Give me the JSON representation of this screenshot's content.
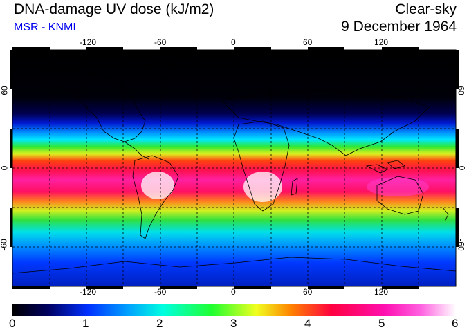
{
  "header": {
    "title": "DNA-damage UV dose (kJ/m2)",
    "subtitle": "MSR - KNMI",
    "condition": "Clear-sky",
    "date": "9 December 1964"
  },
  "map": {
    "lon_ticks": [
      "-120",
      "-60",
      "0",
      "60",
      "120"
    ],
    "lat_ticks_left": [
      "60",
      "0",
      "-60"
    ],
    "lat_ticks_right": [
      "60",
      "0",
      "-60"
    ],
    "colors": {
      "low": "#000010",
      "blue": "#0030ff",
      "cyan": "#00e8ff",
      "green": "#20e030",
      "yellow": "#f0ff20",
      "red": "#ff1030",
      "magenta": "#ff20c0",
      "white": "#ffffff"
    }
  },
  "colorbar": {
    "min": 0,
    "max": 6,
    "labels": [
      "0",
      "1",
      "2",
      "3",
      "4",
      "5",
      "6"
    ]
  }
}
